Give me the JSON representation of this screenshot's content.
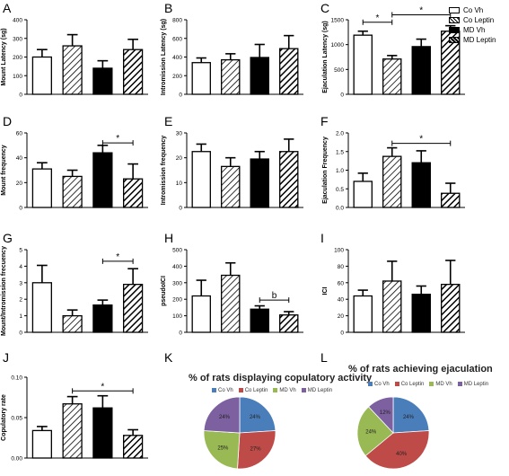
{
  "legend": {
    "entries": [
      {
        "name": "Co Vh",
        "fill": "white"
      },
      {
        "name": "Co Leptin",
        "fill": "hatch"
      },
      {
        "name": "MD Vh",
        "fill": "black"
      },
      {
        "name": "MD Leptin",
        "fill": "hatchdark"
      }
    ]
  },
  "chart_data": [
    {
      "type": "bar",
      "panel": "A",
      "ylabel": "Mount Latency (sg)",
      "ylim": [
        0,
        400
      ],
      "yticks": [
        "0",
        "100",
        "200",
        "300",
        "400"
      ],
      "yticks_v": [
        0,
        100,
        200,
        300,
        400
      ],
      "categories": [
        "Co Vh",
        "Co Leptin",
        "MD Vh",
        "MD Leptin"
      ],
      "values": [
        200,
        260,
        140,
        240
      ],
      "errors": [
        40,
        60,
        40,
        55
      ]
    },
    {
      "type": "bar",
      "panel": "B",
      "ylabel": "Intromission Latency (sg)",
      "ylim": [
        0,
        800
      ],
      "yticks": [
        "0",
        "200",
        "400",
        "600",
        "800"
      ],
      "yticks_v": [
        0,
        200,
        400,
        600,
        800
      ],
      "categories": [
        "Co Vh",
        "Co Leptin",
        "MD Vh",
        "MD Leptin"
      ],
      "values": [
        340,
        370,
        395,
        490
      ],
      "errors": [
        50,
        65,
        140,
        140
      ]
    },
    {
      "type": "bar",
      "panel": "C",
      "ylabel": "Ejaculation Latency (sg)",
      "ylim": [
        0,
        1500
      ],
      "yticks": [
        "0",
        "500",
        "1000",
        "1500"
      ],
      "yticks_v": [
        0,
        500,
        1000,
        1500
      ],
      "categories": [
        "Co Vh",
        "Co Leptin",
        "MD Vh",
        "MD Leptin"
      ],
      "values": [
        1190,
        710,
        960,
        1270
      ],
      "errors": [
        80,
        70,
        150,
        110
      ],
      "annotations": [
        {
          "label": "*",
          "from": 0,
          "to": 1,
          "y": 1450
        },
        {
          "label": "*",
          "from": 1,
          "to": 3,
          "y": 1600
        }
      ]
    },
    {
      "type": "bar",
      "panel": "D",
      "ylabel": "Mount frequency",
      "ylim": [
        0,
        60
      ],
      "yticks": [
        "0",
        "20",
        "40",
        "60"
      ],
      "yticks_v": [
        0,
        20,
        40,
        60
      ],
      "categories": [
        "Co Vh",
        "Co Leptin",
        "MD Vh",
        "MD Leptin"
      ],
      "values": [
        31,
        25,
        44,
        23
      ],
      "errors": [
        5,
        5,
        6,
        12
      ],
      "annotations": [
        {
          "label": "*",
          "from": 2,
          "to": 3,
          "y": 52
        }
      ]
    },
    {
      "type": "bar",
      "panel": "E",
      "ylabel": "Intromission frequency",
      "ylim": [
        0,
        30
      ],
      "yticks": [
        "0",
        "10",
        "20",
        "30"
      ],
      "yticks_v": [
        0,
        10,
        20,
        30
      ],
      "categories": [
        "Co Vh",
        "Co Leptin",
        "MD Vh",
        "MD Leptin"
      ],
      "values": [
        22.5,
        16.5,
        19.5,
        22.5
      ],
      "errors": [
        3,
        3.5,
        3,
        5
      ]
    },
    {
      "type": "bar",
      "panel": "F",
      "ylabel": "Ejaculation Frequency",
      "ylim": [
        0,
        2.0
      ],
      "yticks": [
        "0.0",
        "0.5",
        "1.0",
        "1.5",
        "2.0"
      ],
      "yticks_v": [
        0,
        0.5,
        1,
        1.5,
        2
      ],
      "categories": [
        "Co Vh",
        "Co Leptin",
        "MD Vh",
        "MD Leptin"
      ],
      "values": [
        0.7,
        1.37,
        1.2,
        0.38
      ],
      "errors": [
        0.22,
        0.23,
        0.32,
        0.27
      ],
      "annotations": [
        {
          "label": "*",
          "from": 1,
          "to": 3,
          "y": 1.72
        }
      ]
    },
    {
      "type": "bar",
      "panel": "G",
      "ylabel": "Mount/Intromission frecuency",
      "ylim": [
        0,
        5
      ],
      "yticks": [
        "0",
        "1",
        "2",
        "3",
        "4",
        "5"
      ],
      "yticks_v": [
        0,
        1,
        2,
        3,
        4,
        5
      ],
      "categories": [
        "Co Vh",
        "Co Leptin",
        "MD Vh",
        "MD Leptin"
      ],
      "values": [
        3.0,
        1.0,
        1.65,
        2.9
      ],
      "errors": [
        1.05,
        0.35,
        0.3,
        0.95
      ],
      "annotations": [
        {
          "label": "*",
          "from": 2,
          "to": 3,
          "y": 4.3
        }
      ]
    },
    {
      "type": "bar",
      "panel": "H",
      "ylabel": "pseudoICI",
      "ylim": [
        0,
        500
      ],
      "yticks": [
        "0",
        "100",
        "200",
        "300",
        "400",
        "500"
      ],
      "yticks_v": [
        0,
        100,
        200,
        300,
        400,
        500
      ],
      "categories": [
        "Co Vh",
        "Co Leptin",
        "MD Vh",
        "MD Leptin"
      ],
      "values": [
        220,
        345,
        140,
        105
      ],
      "errors": [
        95,
        75,
        20,
        20
      ],
      "annotations": [
        {
          "label": "b",
          "from": 2,
          "to": 3,
          "y": 195
        }
      ]
    },
    {
      "type": "bar",
      "panel": "I",
      "ylabel": "ICI",
      "ylim": [
        0,
        100
      ],
      "yticks": [
        "0",
        "20",
        "40",
        "60",
        "80",
        "100"
      ],
      "yticks_v": [
        0,
        20,
        40,
        60,
        80,
        100
      ],
      "categories": [
        "Co Vh",
        "Co Leptin",
        "MD Vh",
        "MD Leptin"
      ],
      "values": [
        44,
        62,
        46,
        58
      ],
      "errors": [
        7,
        24,
        10,
        29
      ]
    },
    {
      "type": "bar",
      "panel": "J",
      "ylabel": "Copulatory rate",
      "ylim": [
        0,
        0.1
      ],
      "yticks": [
        "0.00",
        "0.05",
        "0.10"
      ],
      "yticks_v": [
        0,
        0.05,
        0.1
      ],
      "categories": [
        "Co Vh",
        "Co Leptin",
        "MD Vh",
        "MD Leptin"
      ],
      "values": [
        0.034,
        0.067,
        0.062,
        0.028
      ],
      "errors": [
        0.005,
        0.009,
        0.015,
        0.007
      ],
      "annotations": [
        {
          "label": "*",
          "from": 1,
          "to": 3,
          "y": 0.083
        }
      ]
    },
    {
      "type": "pie",
      "panel": "K",
      "title": "% of rats displaying copulatory activity",
      "categories": [
        "Co Vh",
        "Co Leptin",
        "MD Vh",
        "MD Leptin"
      ],
      "values": [
        24,
        27,
        25,
        24
      ],
      "labels": [
        "24%",
        "27%",
        "25%",
        "24%"
      ],
      "colors": [
        "#4a7ebb",
        "#be4b48",
        "#98b954",
        "#7d60a0"
      ]
    },
    {
      "type": "pie",
      "panel": "L",
      "title": "% of rats achieving ejaculation",
      "categories": [
        "Co Vh",
        "Co Leptin",
        "MD Vh",
        "MD Leptin"
      ],
      "values": [
        24,
        40,
        24,
        12
      ],
      "labels": [
        "24%",
        "40%",
        "24%",
        "12%"
      ],
      "colors": [
        "#4a7ebb",
        "#be4b48",
        "#98b954",
        "#7d60a0"
      ]
    }
  ]
}
